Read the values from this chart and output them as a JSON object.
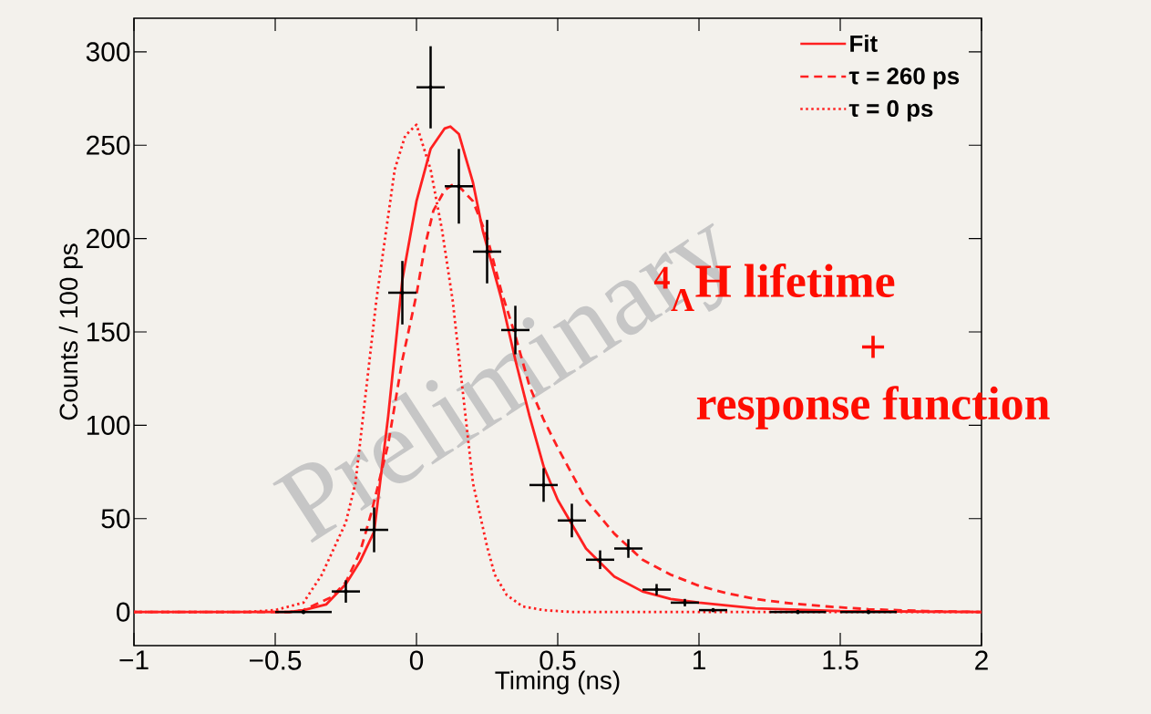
{
  "chart_data": {
    "type": "line",
    "xlabel": "Timing (ns)",
    "ylabel": "Counts / 100 ps",
    "xlim": [
      -1,
      2
    ],
    "ylim": [
      -18,
      318
    ],
    "xticks": [
      {
        "value": -1,
        "label": "−1"
      },
      {
        "value": -0.5,
        "label": "−0.5"
      },
      0,
      0.5,
      1,
      1.5,
      2
    ],
    "yticks": [
      0,
      50,
      100,
      150,
      200,
      250,
      300
    ],
    "legend": "top right",
    "marker": "none",
    "annotations": [
      "Preliminary",
      "$^{4}$$_{Λ}$H lifetime",
      "+",
      "response function"
    ],
    "series": [
      {
        "name": "Fit",
        "color": "#ff2020",
        "line_style": "solid",
        "x": [
          -1,
          -0.45,
          -0.4,
          -0.32,
          -0.25,
          -0.2,
          -0.15,
          -0.1,
          -0.05,
          0,
          0.05,
          0.1,
          0.12,
          0.15,
          0.2,
          0.235,
          0.3,
          0.35,
          0.4,
          0.45,
          0.5,
          0.6,
          0.7,
          0.8,
          0.9,
          1.0,
          1.2,
          1.5,
          2
        ],
        "values": [
          0,
          0,
          1,
          4,
          15,
          27,
          43,
          105,
          178,
          220,
          248,
          259,
          260,
          256,
          230,
          204,
          168,
          135,
          105,
          78,
          60,
          34,
          19,
          11,
          7,
          5,
          2,
          0.5,
          0
        ]
      },
      {
        "name": "τ = 260 ps",
        "color": "#ff2020",
        "line_style": "dashed",
        "x": [
          -1,
          -0.45,
          -0.4,
          -0.3,
          -0.25,
          -0.2,
          -0.16,
          -0.1,
          -0.05,
          0,
          0.03,
          0.06,
          0.1,
          0.13,
          0.15,
          0.2,
          0.25,
          0.3,
          0.35,
          0.4,
          0.45,
          0.5,
          0.6,
          0.7,
          0.8,
          0.9,
          1.0,
          1.1,
          1.2,
          1.3,
          1.45,
          1.6,
          1.8,
          2
        ],
        "values": [
          0,
          0,
          1,
          8,
          16,
          32,
          53,
          90,
          135,
          170,
          196,
          215,
          226,
          229,
          228,
          220,
          201,
          172,
          148,
          121,
          103,
          88,
          60,
          42,
          28,
          20,
          14,
          10,
          7,
          5,
          3,
          1.5,
          0.5,
          0
        ]
      },
      {
        "name": "τ = 0 ps",
        "color": "#ff2020",
        "line_style": "dotted",
        "x": [
          -1,
          -0.6,
          -0.5,
          -0.4,
          -0.335,
          -0.25,
          -0.216,
          -0.142,
          -0.077,
          -0.04,
          0,
          0.05,
          0.09,
          0.128,
          0.2,
          0.25,
          0.277,
          0.32,
          0.375,
          0.45,
          0.55,
          2
        ],
        "values": [
          0,
          0,
          1,
          5,
          20,
          48,
          69,
          167,
          237,
          255,
          261,
          237,
          205,
          167,
          69,
          35,
          20,
          9,
          3,
          1,
          0,
          0
        ]
      },
      {
        "type": "scatter",
        "color": "#000000",
        "x": [
          -0.4,
          -0.25,
          -0.15,
          -0.05,
          0.05,
          0.15,
          0.25,
          0.35,
          0.45,
          0.55,
          0.65,
          0.75,
          0.85,
          0.95,
          1.05,
          1.35,
          1.6
        ],
        "values": [
          0,
          11,
          44,
          171,
          281,
          228,
          193,
          151,
          68,
          49,
          28,
          34,
          12,
          5,
          1,
          0,
          0
        ],
        "errors": [
          1,
          6,
          12,
          17,
          22,
          20,
          17,
          13,
          9,
          9,
          5,
          5,
          3,
          2,
          1,
          1,
          1
        ],
        "xerrors": [
          0.1,
          0.05,
          0.05,
          0.05,
          0.05,
          0.05,
          0.05,
          0.05,
          0.05,
          0.05,
          0.05,
          0.05,
          0.05,
          0.05,
          0.05,
          0.1,
          0.1
        ]
      }
    ]
  }
}
